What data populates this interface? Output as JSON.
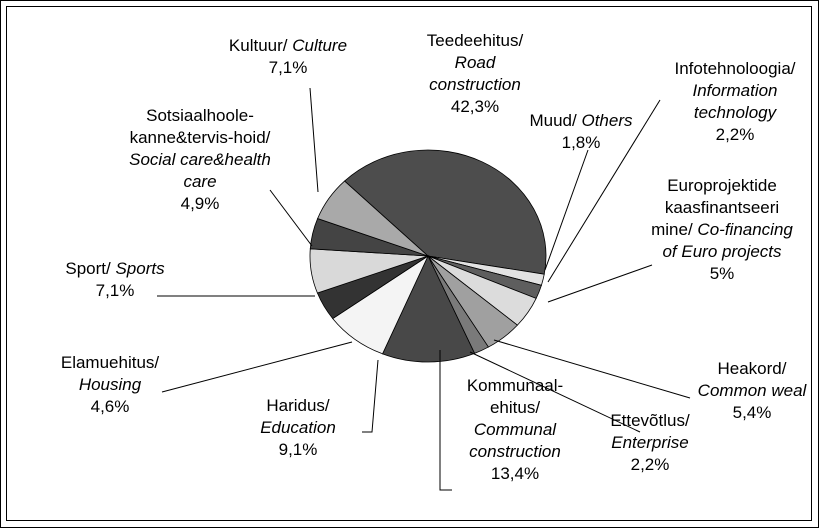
{
  "chart_data": {
    "type": "pie",
    "categories": [
      "Teedeehitus/",
      "Muud/",
      "Infotehnoloogia/",
      "Europrojektide kaasfinantseeri mine/",
      "Heakord/",
      "Ettevõtlus/",
      "Kommunaal-ehitus/",
      "Haridus/",
      "Elamuehitus/",
      "Sport/",
      "Sotsiaalhoole-kanne&tervis-hoid/",
      "Kultuur/"
    ],
    "categories_en": [
      "Road construction",
      "Others",
      "Information technology",
      "Co-financing of Euro projects",
      "Common weal",
      "Enterprise",
      "Communal construction",
      "Education",
      "Housing",
      "Sports",
      "Social care&health care",
      "Culture"
    ],
    "values": [
      42.3,
      1.8,
      2.2,
      5,
      5.4,
      2.2,
      13.4,
      9.1,
      4.6,
      7.1,
      4.9,
      7.1
    ],
    "value_labels": [
      "42,3%",
      "1,8%",
      "2,2%",
      "5%",
      "5,4%",
      "2,2%",
      "13,4%",
      "9,1%",
      "4,6%",
      "7,1%",
      "4,9%",
      "7,1%"
    ],
    "colors": [
      "#4d4d4d",
      "#e2e2e2",
      "#5e5e5e",
      "#dcdcdc",
      "#a0a0a0",
      "#7a7a7a",
      "#484848",
      "#f4f4f4",
      "#333333",
      "#d9d9d9",
      "#444444",
      "#a9a9a9"
    ]
  }
}
